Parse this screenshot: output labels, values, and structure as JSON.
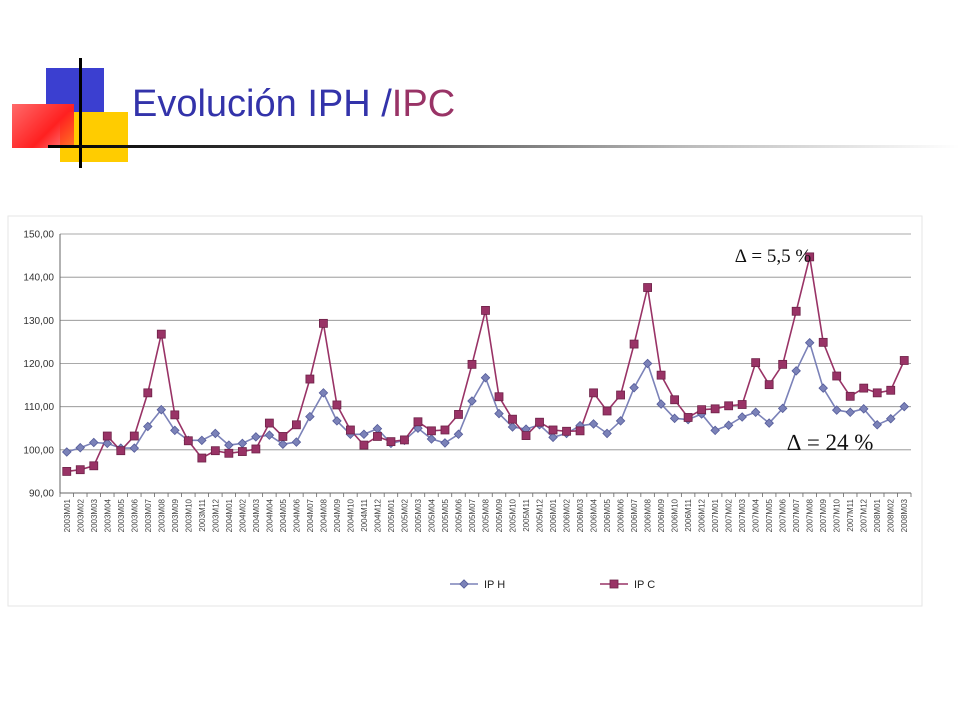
{
  "slide": {
    "title_part1": "Evolución IPH /",
    "title_part2": "IPC"
  },
  "colors": {
    "iph": "#7b82b8",
    "iph_stroke": "#555c9a",
    "ipc": "#993366",
    "title_blue": "#3333aa",
    "title_purple": "#993366"
  },
  "chart_data": {
    "type": "line",
    "title": "",
    "xlabel": "",
    "ylabel": "",
    "ylim": [
      90,
      150
    ],
    "y_ticks": [
      "90,00",
      "100,00",
      "110,00",
      "120,00",
      "130,00",
      "140,00",
      "150,00"
    ],
    "grid": true,
    "legend_position": "bottom",
    "categories": [
      "2003M01",
      "2003M02",
      "2003M03",
      "2003M04",
      "2003M05",
      "2003M06",
      "2003M07",
      "2003M08",
      "2003M09",
      "2003M10",
      "2003M11",
      "2003M12",
      "2004M01",
      "2004M02",
      "2004M03",
      "2004M04",
      "2004M05",
      "2004M06",
      "2004M07",
      "2004M08",
      "2004M09",
      "2004M10",
      "2004M11",
      "2004M12",
      "2005M01",
      "2005M02",
      "2005M03",
      "2005M04",
      "2005M05",
      "2005M06",
      "2005M07",
      "2005M08",
      "2005M09",
      "2005M10",
      "2005M11",
      "2005M12",
      "2006M01",
      "2006M02",
      "2006M03",
      "2006M04",
      "2006M05",
      "2006M06",
      "2006M07",
      "2006M08",
      "2006M09",
      "2006M10",
      "2006M11",
      "2006M12",
      "2007M01",
      "2007M02",
      "2007M03",
      "2007M04",
      "2007M05",
      "2007M06",
      "2007M07",
      "2007M08",
      "2007M09",
      "2007M10",
      "2007M11",
      "2007M12",
      "2008M01",
      "2008M02",
      "2008M03"
    ],
    "series": [
      {
        "name": "IP H",
        "marker": "diamond",
        "values": [
          99.5,
          100.5,
          101.7,
          101.5,
          100.4,
          100.4,
          105.4,
          109.3,
          104.5,
          102.2,
          102.2,
          103.8,
          101.1,
          101.5,
          103.0,
          103.4,
          101.3,
          101.8,
          107.7,
          113.2,
          106.7,
          103.6,
          103.6,
          104.9,
          101.5,
          102.2,
          105.0,
          102.5,
          101.6,
          103.6,
          111.3,
          116.7,
          108.4,
          105.3,
          104.8,
          105.8,
          102.9,
          103.8,
          105.6,
          106.0,
          103.8,
          106.7,
          114.4,
          120.0,
          110.6,
          107.3,
          107.0,
          108.3,
          104.5,
          105.7,
          107.6,
          108.7,
          106.2,
          109.6,
          118.3,
          124.8,
          114.3,
          109.2,
          108.7,
          109.5,
          105.8,
          107.2,
          110.0
        ]
      },
      {
        "name": "IP C",
        "marker": "square",
        "values": [
          95.0,
          95.4,
          96.3,
          103.2,
          99.8,
          103.2,
          113.2,
          126.8,
          108.1,
          102.1,
          98.1,
          99.8,
          99.2,
          99.6,
          100.2,
          106.2,
          103.1,
          105.8,
          116.4,
          129.3,
          110.4,
          104.6,
          101.1,
          103.1,
          101.9,
          102.3,
          106.5,
          104.4,
          104.6,
          108.2,
          119.8,
          132.3,
          112.3,
          107.1,
          103.3,
          106.4,
          104.6,
          104.3,
          104.4,
          113.2,
          109.0,
          112.7,
          124.5,
          137.6,
          117.3,
          111.6,
          107.5,
          109.3,
          109.5,
          110.2,
          110.5,
          120.2,
          115.1,
          119.8,
          132.1,
          144.7,
          124.9,
          117.1,
          112.4,
          114.3,
          113.2,
          113.8,
          120.7
        ]
      }
    ],
    "annotations": [
      {
        "text": "∆ = 5,5 %",
        "target_series": "IP H",
        "near_category": "2007M07"
      },
      {
        "text": "∆ = 24 %",
        "target_series": "IP C",
        "near_category": "2007M06"
      }
    ]
  }
}
